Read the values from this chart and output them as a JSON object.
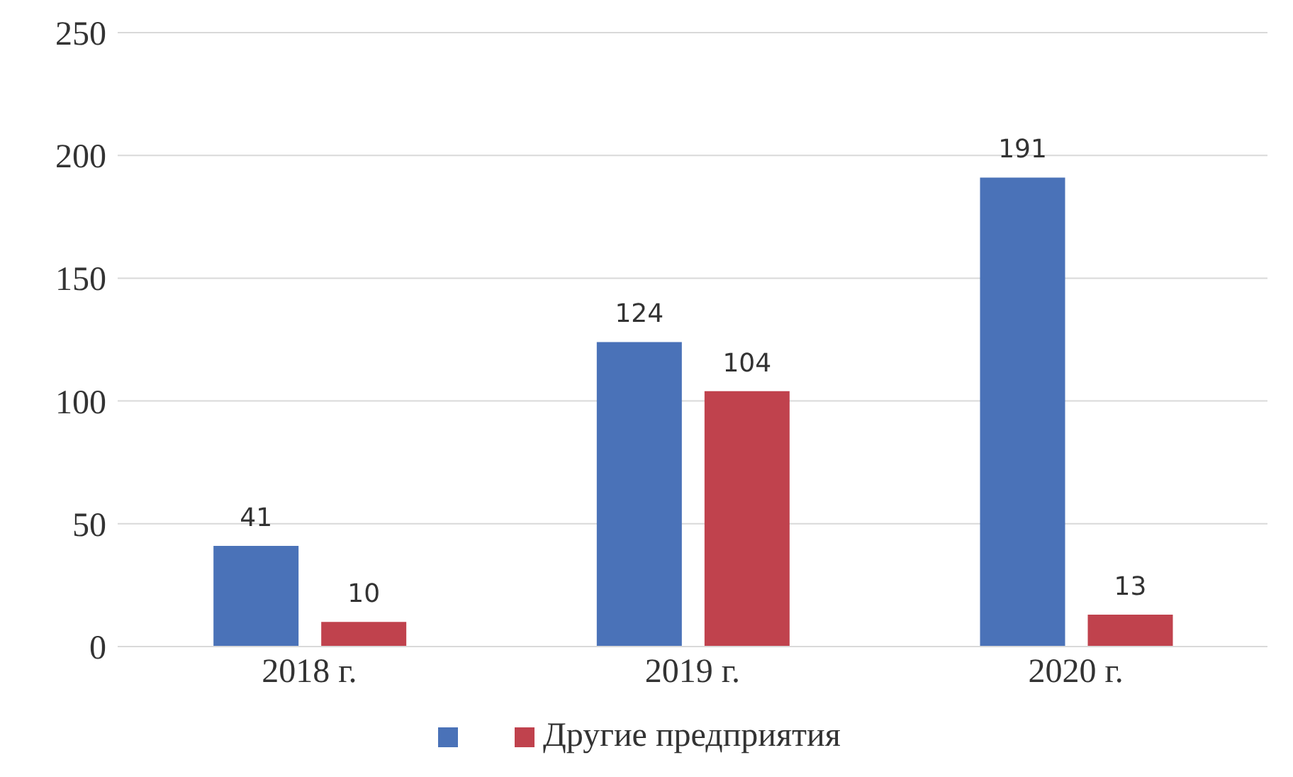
{
  "chart_data": {
    "type": "bar",
    "categories": [
      "2018 г.",
      "2019 г.",
      "2020 г."
    ],
    "series": [
      {
        "color": "#4a72b8",
        "values": [
          41,
          124,
          191
        ]
      },
      {
        "name": "Другие предприятия",
        "color": "#c0424d",
        "values": [
          10,
          104,
          13
        ]
      }
    ],
    "ylim": [
      0,
      250
    ],
    "yticks": [
      0,
      50,
      100,
      150,
      200,
      250
    ],
    "grid": "y",
    "legend": "bottom",
    "data_labels": true
  }
}
